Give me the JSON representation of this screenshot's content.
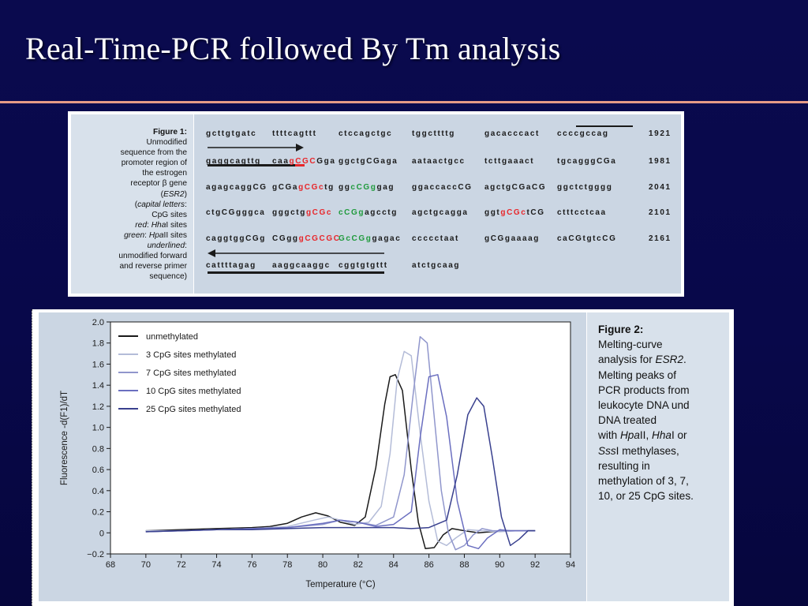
{
  "slide": {
    "title": "Real-Time-PCR followed By Tm analysis",
    "colors": {
      "background": "#0a0a4e",
      "rule": "#e69a86",
      "title": "#ffffff"
    }
  },
  "figure1": {
    "caption": {
      "head": "Figure 1:",
      "l1": "Unmodified",
      "l2": "sequence from the",
      "l3": "promoter region of",
      "l4": "the estrogen",
      "l5a": "receptor ",
      "l5b": "β",
      "l5c": " gene",
      "l6": "ESR2",
      "l7a": "capital letters",
      "l7b": ":",
      "l8": "CpG sites",
      "l9a": "red",
      "l9b": ": ",
      "l9c": "Hha",
      "l9d": "I sites",
      "l10a": "green",
      "l10b": ": ",
      "l10c": "Hpa",
      "l10d": "II sites",
      "l11a": "underlined",
      "l11b": ":",
      "l12": "unmodified forward",
      "l13": "and reverse primer",
      "l14": "sequence)"
    },
    "lines": [
      {
        "groups": [
          [
            [
              "gcttgtgatc",
              ""
            ]
          ],
          [
            [
              "ttttcagttt",
              ""
            ]
          ],
          [
            [
              "ctccagctgc",
              ""
            ]
          ],
          [
            [
              "tggcttttg",
              ""
            ]
          ],
          [
            [
              "gacacccact",
              ""
            ]
          ],
          [
            [
              "ccccgccag",
              ""
            ]
          ]
        ],
        "pos": "1921"
      },
      {
        "groups": [
          [
            [
              "gaggcagttg",
              ""
            ]
          ],
          [
            [
              "caa",
              ""
            ],
            [
              "gCGC",
              "red"
            ],
            [
              "Gga",
              ""
            ]
          ],
          [
            [
              "ggctgCGaga",
              ""
            ]
          ],
          [
            [
              "aataactgcc",
              ""
            ]
          ],
          [
            [
              "tcttgaaact",
              ""
            ]
          ],
          [
            [
              "tgcagggCGa",
              ""
            ]
          ]
        ],
        "pos": "1981"
      },
      {
        "groups": [
          [
            [
              "agagcaggCG",
              ""
            ]
          ],
          [
            [
              "gCGa",
              ""
            ],
            [
              "gCGc",
              "red"
            ],
            [
              "tg",
              ""
            ]
          ],
          [
            [
              "gg",
              ""
            ],
            [
              "cCGg",
              "green"
            ],
            [
              "gag",
              ""
            ]
          ],
          [
            [
              "ggaccaccCG",
              ""
            ]
          ],
          [
            [
              "agctgCGaCG",
              ""
            ]
          ],
          [
            [
              "ggctctgggg",
              ""
            ]
          ]
        ],
        "pos": "2041"
      },
      {
        "groups": [
          [
            [
              "ctgCGgggca",
              ""
            ]
          ],
          [
            [
              "gggctg",
              ""
            ],
            [
              "gCGc",
              "red"
            ]
          ],
          [
            [
              "cCGg",
              "green"
            ],
            [
              "agcctg",
              ""
            ]
          ],
          [
            [
              "agctgcagga",
              ""
            ]
          ],
          [
            [
              "ggt",
              ""
            ],
            [
              "gCGc",
              "red"
            ],
            [
              "tCG",
              ""
            ]
          ],
          [
            [
              "ctttcctcaa",
              ""
            ]
          ]
        ],
        "pos": "2101"
      },
      {
        "groups": [
          [
            [
              "caggtggCGg",
              ""
            ]
          ],
          [
            [
              "CGgg",
              ""
            ],
            [
              "gCGCGC",
              "red"
            ]
          ],
          [
            [
              "GcCGg",
              "green"
            ],
            [
              "gagac",
              ""
            ]
          ],
          [
            [
              "ccccctaat",
              ""
            ]
          ],
          [
            [
              "gCGgaaaag",
              ""
            ]
          ],
          [
            [
              "caCGtgtcCG",
              ""
            ]
          ]
        ],
        "pos": "2161"
      },
      {
        "groups": [
          [
            [
              "cattttagag",
              ""
            ]
          ],
          [
            [
              "aaggcaaggc",
              ""
            ]
          ],
          [
            [
              "cggtgtgttt",
              ""
            ]
          ],
          [
            [
              "atctgcaag",
              ""
            ]
          ]
        ],
        "pos": ""
      }
    ]
  },
  "figure2": {
    "caption": {
      "head": "Figure 2:",
      "l1": "Melting-curve",
      "l2a": "analysis for ",
      "l2b": "ESR2",
      "l2c": ".",
      "l3": "Melting peaks of",
      "l4": "PCR products from",
      "l5": "leukocyte DNA und",
      "l6": "DNA treated",
      "l7a": "with ",
      "l7b": "Hpa",
      "l7c": "II, ",
      "l7d": "Hha",
      "l7e": "I or",
      "l8a": "Sss",
      "l8b": "I methylases,",
      "l9": "resulting in",
      "l10": "methylation of 3, 7,",
      "l11": "10, or 25 CpG sites."
    }
  },
  "chart_data": {
    "type": "line",
    "xlabel": "Temperature (°C)",
    "ylabel": "Fluorescence -d(F1)/dT",
    "xlim": [
      68,
      94
    ],
    "ylim": [
      -0.2,
      2.0
    ],
    "xticks": [
      68,
      70,
      72,
      74,
      76,
      78,
      80,
      82,
      84,
      86,
      88,
      90,
      92,
      94
    ],
    "yticks": [
      -0.2,
      0,
      0.2,
      0.4,
      0.6,
      0.8,
      1.0,
      1.2,
      1.4,
      1.6,
      1.8,
      2.0
    ],
    "ytick_labels": [
      "−0.2",
      "0",
      "0.2",
      "0.4",
      "0.6",
      "0.8",
      "1.0",
      "1.2",
      "1.4",
      "1.6",
      "1.8",
      "2.0"
    ],
    "grid": false,
    "legend_position": "top-left",
    "series": [
      {
        "name": "unmethylated",
        "color": "#1a1a1a",
        "x": [
          70,
          72,
          74,
          76,
          77,
          78,
          78.8,
          79.6,
          80.3,
          81,
          81.8,
          82.4,
          83,
          83.5,
          83.8,
          84.1,
          84.5,
          85,
          85.4,
          85.8,
          86.3,
          86.8,
          87.3,
          88,
          88.8,
          89.5,
          90.5,
          92
        ],
        "y": [
          0.02,
          0.03,
          0.04,
          0.05,
          0.06,
          0.09,
          0.15,
          0.19,
          0.16,
          0.1,
          0.07,
          0.15,
          0.62,
          1.22,
          1.48,
          1.5,
          1.35,
          0.6,
          0.1,
          -0.15,
          -0.14,
          -0.02,
          0.04,
          0.02,
          0.0,
          0.01,
          0.02,
          0.02
        ]
      },
      {
        "name": "3  CpG sites methylated",
        "color": "#b4bcd8",
        "x": [
          70,
          72,
          74,
          76,
          78,
          79.5,
          80.3,
          81,
          81.8,
          82.6,
          83.3,
          83.8,
          84.2,
          84.6,
          85,
          85.5,
          86,
          86.5,
          87,
          87.5,
          88.2,
          89,
          90,
          91,
          92
        ],
        "y": [
          0.02,
          0.02,
          0.03,
          0.04,
          0.06,
          0.12,
          0.15,
          0.12,
          0.08,
          0.1,
          0.25,
          0.75,
          1.45,
          1.72,
          1.68,
          0.95,
          0.3,
          -0.08,
          -0.12,
          -0.05,
          0.03,
          0.02,
          0.01,
          0.02,
          0.02
        ]
      },
      {
        "name": "7  CpG sites methylated",
        "color": "#9096cc",
        "x": [
          70,
          72,
          74,
          76,
          78,
          80,
          81,
          82,
          83,
          84,
          84.6,
          85.1,
          85.5,
          85.9,
          86.3,
          86.7,
          87.1,
          87.5,
          88,
          88.5,
          89,
          89.6,
          90.5,
          91.5,
          92
        ],
        "y": [
          0.01,
          0.02,
          0.03,
          0.04,
          0.05,
          0.08,
          0.12,
          0.1,
          0.07,
          0.15,
          0.55,
          1.3,
          1.86,
          1.8,
          1.1,
          0.4,
          0.0,
          -0.16,
          -0.12,
          -0.02,
          0.04,
          0.02,
          0.02,
          0.02,
          0.02
        ]
      },
      {
        "name": "10  CpG sites methylated",
        "color": "#6b6fc0",
        "x": [
          70,
          72,
          74,
          76,
          78,
          80,
          81,
          82,
          83,
          84,
          85,
          85.5,
          86,
          86.5,
          87,
          87.6,
          88.2,
          88.8,
          89.3,
          90,
          90.6,
          91.2,
          92
        ],
        "y": [
          0.01,
          0.02,
          0.03,
          0.04,
          0.05,
          0.09,
          0.12,
          0.1,
          0.06,
          0.08,
          0.2,
          0.9,
          1.48,
          1.5,
          1.1,
          0.3,
          -0.12,
          -0.15,
          -0.05,
          0.03,
          0.02,
          0.02,
          0.02
        ]
      },
      {
        "name": "25  CpG sites methylated",
        "color": "#39408e",
        "x": [
          70,
          72,
          74,
          76,
          78,
          80,
          82,
          84,
          85,
          86,
          87,
          87.6,
          88.2,
          88.7,
          89.1,
          89.6,
          90.1,
          90.6,
          91.1,
          91.6,
          92
        ],
        "y": [
          0.01,
          0.02,
          0.03,
          0.03,
          0.04,
          0.05,
          0.05,
          0.05,
          0.04,
          0.05,
          0.12,
          0.55,
          1.12,
          1.28,
          1.2,
          0.7,
          0.15,
          -0.12,
          -0.06,
          0.02,
          0.02
        ]
      }
    ]
  }
}
